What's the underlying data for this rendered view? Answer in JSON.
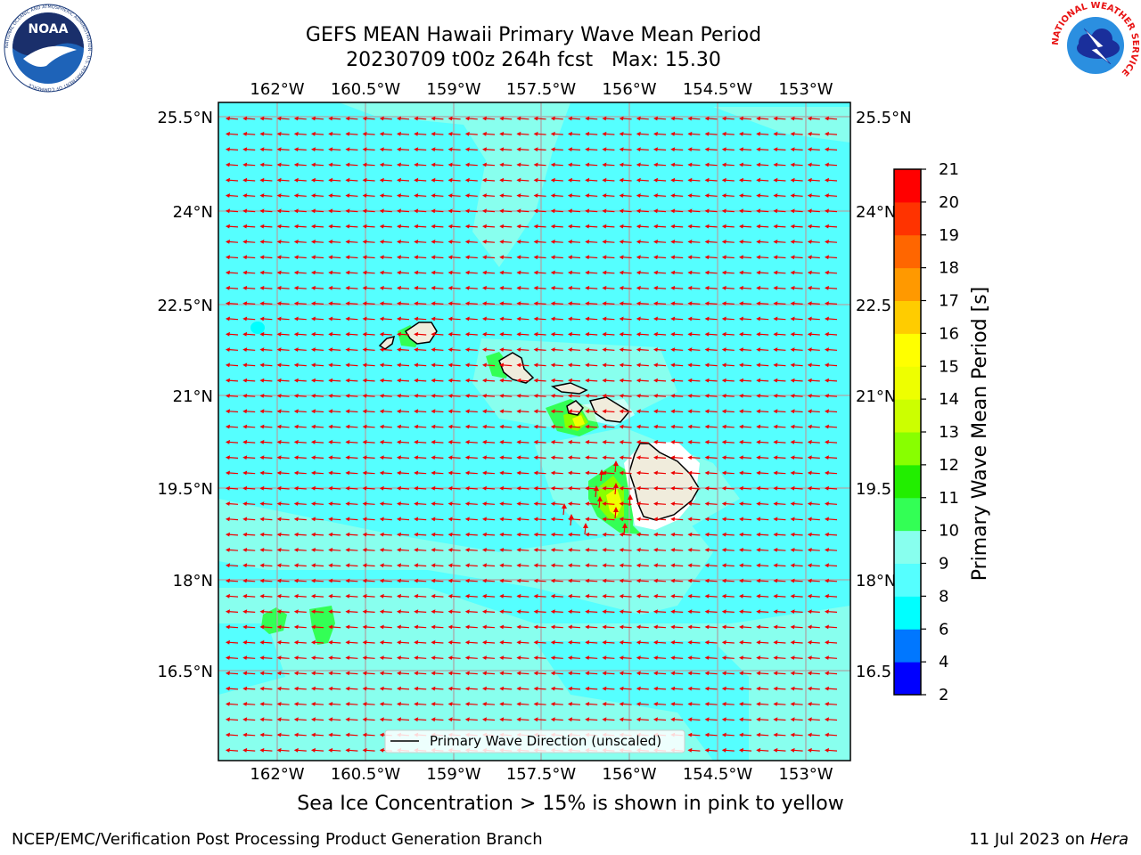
{
  "title_line1": "GEFS MEAN Hawaii Primary Wave Mean Period",
  "title_line2": "20230709 t00z 264h fcst   Max: 15.30",
  "subtitle": "Sea Ice Concentration > 15% is shown in pink to yellow",
  "footer_left": "NCEP/EMC/Verification Post Processing Product Generation Branch",
  "footer_right_date": "11 Jul 2023 on ",
  "footer_right_host": "Hera",
  "legend_label": "Primary Wave Direction (unscaled)",
  "colorbar": {
    "label": "Primary Wave Mean Period [s]",
    "ticks": [
      "2",
      "4",
      "6",
      "8",
      "9",
      "10",
      "11",
      "12",
      "13",
      "14",
      "15",
      "16",
      "17",
      "18",
      "19",
      "20",
      "21"
    ],
    "colors": [
      "#0000ff",
      "#0077ff",
      "#00ffff",
      "#55ffff",
      "#88ffee",
      "#33ff55",
      "#22ee00",
      "#88ff00",
      "#ccff00",
      "#eeff00",
      "#ffff00",
      "#ffcc00",
      "#ff9900",
      "#ff6600",
      "#ff3300",
      "#ff0000"
    ]
  },
  "map": {
    "lon_labels": [
      "162°W",
      "160.5°W",
      "159°W",
      "157.5°W",
      "156°W",
      "154.5°W",
      "153°W"
    ],
    "lat_labels": [
      "25.5°N",
      "24°N",
      "22.5°N",
      "21°N",
      "19.5°N",
      "18°N",
      "16.5°N"
    ],
    "lat_labels_right": [
      "25.5°N",
      "24°N",
      "22.5",
      "21°N",
      "19.5",
      "18°N",
      "16.5"
    ],
    "ocean_color": "#55ffff",
    "land_color": "#f0ecdc",
    "arrow_color": "#ee0000"
  },
  "logos": {
    "noaa_text": "NOAA",
    "noaa_ring": "NATIONAL OCEANIC AND ATMOSPHERIC ADMINISTRATION · U.S. DEPARTMENT OF COMMERCE",
    "nws_ring": "NATIONAL WEATHER SERVICE"
  }
}
